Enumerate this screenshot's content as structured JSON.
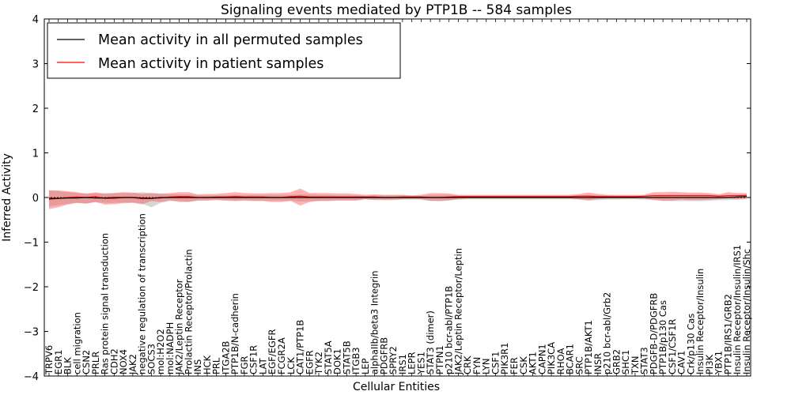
{
  "chart_data": {
    "type": "line",
    "title": "Signaling events mediated by PTP1B -- 584 samples",
    "xlabel": "Cellular Entities",
    "ylabel": "Inferred Activity",
    "ylim": [
      -4,
      4
    ],
    "yticks": [
      -4,
      -3,
      -2,
      -1,
      0,
      1,
      2,
      3,
      4
    ],
    "legend_position": "top-left",
    "categories": [
      "TRPV6",
      "EGR1",
      "BLK",
      "cell migration",
      "CSN2",
      "PRLR",
      "Ras protein signal transduction",
      "CDH2",
      "NOX4",
      "JAK2",
      "negative regulation of transcription",
      "SOCS3",
      "mol:H2O2",
      "mol:NADPH",
      "JAK2/Leptin Receptor",
      "Prolactin Receptor/Prolactin",
      "INS",
      "HCK",
      "PRL",
      "ITGA2B",
      "PTP1B/N-cadherin",
      "FGR",
      "CSF1R",
      "LAT",
      "EGF/EGFR",
      "FCGR2A",
      "LCK",
      "CAT1/PTP1B",
      "EGFR",
      "TYK2",
      "STAT5A",
      "DOK1",
      "STAT5B",
      "ITGB3",
      "LEP",
      "alphaIIb/beta3 Integrin",
      "PDGFRB",
      "SPRY2",
      "IRS1",
      "LEPR",
      "YES1",
      "STAT3 (dimer)",
      "PTPN1",
      "p210 bcr-abl/PTP1B",
      "JAK2/Leptin Receptor/Leptin",
      "CRK",
      "FYN",
      "LYN",
      "CSF1",
      "PIK3R1",
      "FER",
      "CSK",
      "AKT1",
      "CAPN1",
      "PIK3CA",
      "RHOA",
      "BCAR1",
      "SRC",
      "PTP1B/AKT1",
      "INSR",
      "p210 bcr-abl/Grb2",
      "GRB2",
      "SHC1",
      "TXN",
      "STAT3",
      "PDGFB-D/PDGFRB",
      "PTP1B/p130 Cas",
      "CSF1/CSF1R",
      "CAV1",
      "Crk/p130 Cas",
      "Insulin Receptor/Insulin",
      "PI3K",
      "YBX1",
      "PTP1B/IRS1/GRB2",
      "Insulin Receptor/Insulin/IRS1",
      "Insulin Receptor/Insulin/Shc"
    ],
    "series": [
      {
        "name": "Mean activity in all permuted samples",
        "color": "#000000",
        "values": [
          -0.02,
          -0.02,
          -0.01,
          -0.01,
          0.0,
          -0.01,
          -0.01,
          0.0,
          0.0,
          0.0,
          -0.01,
          -0.02,
          0.0,
          0.0,
          0.0,
          0.0,
          0.0,
          0.0,
          0.0,
          0.0,
          0.0,
          0.0,
          0.0,
          0.0,
          0.0,
          0.0,
          0.0,
          0.0,
          0.0,
          0.0,
          0.0,
          0.0,
          0.0,
          0.0,
          0.0,
          0.0,
          0.0,
          0.0,
          0.0,
          0.0,
          0.0,
          0.0,
          0.0,
          0.0,
          0.0,
          0.0,
          0.0,
          0.0,
          0.0,
          0.0,
          0.0,
          0.0,
          0.0,
          0.0,
          0.0,
          0.0,
          0.0,
          0.0,
          0.0,
          0.0,
          0.0,
          0.0,
          0.0,
          0.0,
          0.0,
          0.0,
          0.0,
          0.0,
          0.0,
          0.0,
          0.0,
          0.0,
          0.0,
          0.0,
          0.01,
          0.02
        ],
        "band_low": [
          -0.2,
          -0.17,
          -0.14,
          -0.12,
          -0.13,
          -0.1,
          -0.12,
          -0.12,
          -0.11,
          -0.11,
          -0.14,
          -0.22,
          -0.12,
          -0.08,
          -0.08,
          -0.09,
          -0.06,
          -0.06,
          -0.05,
          -0.06,
          -0.07,
          -0.06,
          -0.07,
          -0.07,
          -0.07,
          -0.07,
          -0.07,
          -0.09,
          -0.08,
          -0.07,
          -0.07,
          -0.06,
          -0.06,
          -0.06,
          -0.04,
          -0.06,
          -0.06,
          -0.06,
          -0.05,
          -0.05,
          -0.05,
          -0.08,
          -0.08,
          -0.07,
          -0.05,
          -0.04,
          -0.04,
          -0.04,
          -0.04,
          -0.04,
          -0.04,
          -0.04,
          -0.04,
          -0.04,
          -0.04,
          -0.04,
          -0.04,
          -0.05,
          -0.07,
          -0.06,
          -0.05,
          -0.05,
          -0.04,
          -0.04,
          -0.05,
          -0.05,
          -0.08,
          -0.08,
          -0.08,
          -0.08,
          -0.08,
          -0.07,
          -0.06,
          -0.06,
          -0.05,
          -0.04
        ],
        "band_high": [
          0.16,
          0.14,
          0.12,
          0.1,
          0.1,
          0.09,
          0.1,
          0.1,
          0.1,
          0.1,
          0.12,
          0.1,
          0.09,
          0.07,
          0.07,
          0.07,
          0.05,
          0.05,
          0.05,
          0.05,
          0.06,
          0.05,
          0.06,
          0.06,
          0.06,
          0.06,
          0.06,
          0.07,
          0.07,
          0.06,
          0.06,
          0.05,
          0.05,
          0.05,
          0.04,
          0.05,
          0.05,
          0.05,
          0.05,
          0.04,
          0.04,
          0.06,
          0.06,
          0.06,
          0.04,
          0.04,
          0.04,
          0.04,
          0.04,
          0.04,
          0.04,
          0.04,
          0.04,
          0.04,
          0.04,
          0.04,
          0.04,
          0.05,
          0.06,
          0.05,
          0.05,
          0.04,
          0.04,
          0.04,
          0.04,
          0.05,
          0.06,
          0.06,
          0.06,
          0.06,
          0.06,
          0.06,
          0.05,
          0.05,
          0.06,
          0.05
        ]
      },
      {
        "name": "Mean activity in patient samples",
        "color": "#ff0000",
        "values": [
          -0.04,
          -0.02,
          0.0,
          0.01,
          0.0,
          0.02,
          -0.02,
          -0.02,
          0.0,
          0.0,
          -0.03,
          -0.02,
          -0.01,
          0.01,
          0.02,
          0.02,
          0.0,
          0.0,
          0.01,
          0.01,
          0.02,
          0.01,
          0.01,
          0.01,
          0.0,
          0.0,
          0.02,
          0.03,
          0.01,
          0.01,
          0.01,
          0.01,
          0.01,
          0.01,
          0.01,
          0.01,
          0.0,
          0.0,
          0.01,
          0.01,
          0.01,
          0.0,
          0.0,
          0.01,
          0.02,
          0.02,
          0.02,
          0.02,
          0.02,
          0.02,
          0.02,
          0.02,
          0.02,
          0.02,
          0.02,
          0.02,
          0.02,
          0.03,
          0.03,
          0.02,
          0.02,
          0.02,
          0.02,
          0.02,
          0.03,
          0.04,
          0.04,
          0.04,
          0.04,
          0.04,
          0.04,
          0.04,
          0.03,
          0.04,
          0.04,
          0.05
        ],
        "band_low": [
          -0.26,
          -0.22,
          -0.16,
          -0.12,
          -0.14,
          -0.1,
          -0.16,
          -0.15,
          -0.13,
          -0.12,
          -0.15,
          -0.08,
          -0.1,
          -0.06,
          -0.1,
          -0.1,
          -0.07,
          -0.07,
          -0.06,
          -0.07,
          -0.08,
          -0.07,
          -0.08,
          -0.08,
          -0.1,
          -0.1,
          -0.08,
          -0.18,
          -0.1,
          -0.08,
          -0.08,
          -0.07,
          -0.07,
          -0.07,
          -0.04,
          -0.05,
          -0.05,
          -0.05,
          -0.04,
          -0.03,
          -0.04,
          -0.07,
          -0.08,
          -0.06,
          -0.03,
          -0.02,
          -0.02,
          -0.02,
          -0.02,
          -0.02,
          -0.02,
          -0.02,
          -0.02,
          -0.02,
          -0.02,
          -0.02,
          -0.02,
          -0.04,
          -0.06,
          -0.03,
          -0.02,
          -0.02,
          -0.02,
          -0.02,
          -0.02,
          -0.06,
          -0.07,
          -0.07,
          -0.05,
          -0.06,
          -0.06,
          -0.05,
          -0.04,
          -0.02,
          -0.04,
          -0.02
        ],
        "band_high": [
          0.16,
          0.16,
          0.14,
          0.12,
          0.08,
          0.12,
          0.08,
          0.1,
          0.12,
          0.11,
          0.08,
          0.1,
          0.08,
          0.1,
          0.12,
          0.12,
          0.07,
          0.08,
          0.08,
          0.1,
          0.12,
          0.1,
          0.09,
          0.09,
          0.1,
          0.1,
          0.12,
          0.2,
          0.1,
          0.1,
          0.1,
          0.09,
          0.09,
          0.08,
          0.06,
          0.07,
          0.06,
          0.06,
          0.06,
          0.05,
          0.06,
          0.1,
          0.1,
          0.09,
          0.06,
          0.06,
          0.06,
          0.06,
          0.06,
          0.06,
          0.06,
          0.06,
          0.06,
          0.06,
          0.06,
          0.06,
          0.06,
          0.08,
          0.11,
          0.08,
          0.06,
          0.06,
          0.06,
          0.06,
          0.06,
          0.12,
          0.12,
          0.13,
          0.12,
          0.11,
          0.11,
          0.1,
          0.07,
          0.12,
          0.1,
          0.1
        ]
      }
    ]
  }
}
